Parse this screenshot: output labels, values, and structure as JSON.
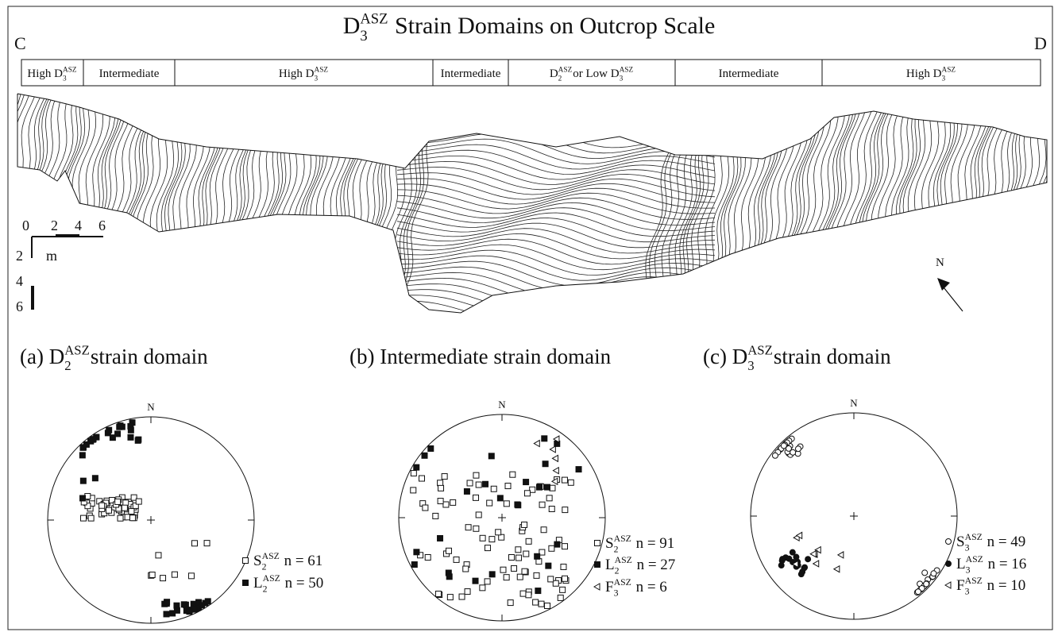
{
  "title": [
    {
      "text": "D"
    },
    {
      "sub": "3",
      "sup": "ASZ"
    },
    {
      "text": " Strain Domains on Outcrop Scale"
    }
  ],
  "ends": {
    "left": "C",
    "right": "D"
  },
  "domains": [
    [
      {
        "text": "High D"
      },
      {
        "sub": "3",
        "sup": "ASZ"
      }
    ],
    [
      {
        "text": "Intermediate"
      }
    ],
    [
      {
        "text": "High D"
      },
      {
        "sub": "3",
        "sup": "ASZ"
      }
    ],
    [
      {
        "text": "Intermediate"
      }
    ],
    [
      {
        "text": "D"
      },
      {
        "sub": "2",
        "sup": "ASZ"
      },
      {
        "text": "or Low D"
      },
      {
        "sub": "3",
        "sup": "ASZ"
      }
    ],
    [
      {
        "text": "Intermediate"
      }
    ],
    [
      {
        "text": "High D"
      },
      {
        "sub": "3",
        "sup": "ASZ"
      }
    ]
  ],
  "scale": {
    "x_labels": [
      0,
      2,
      4,
      6
    ],
    "unit": "m",
    "y_labels": [
      2,
      4,
      6
    ]
  },
  "north": "N",
  "panels": [
    {
      "title": [
        {
          "text": "(a) D"
        },
        {
          "sub": "2",
          "sup": "ASZ"
        },
        {
          "text": "strain domain"
        }
      ],
      "north": "N",
      "legend": [
        {
          "parts": [
            {
              "text": "S"
            },
            {
              "sub": "2",
              "sup": "ASZ"
            },
            {
              "text": " n = 61"
            }
          ]
        },
        {
          "parts": [
            {
              "text": "L"
            },
            {
              "sub": "2",
              "sup": "ASZ"
            },
            {
              "text": " n = 50"
            }
          ]
        }
      ]
    },
    {
      "title": [
        {
          "text": "(b) Intermediate strain domain"
        }
      ],
      "north": "N",
      "legend": [
        {
          "parts": [
            {
              "text": "S"
            },
            {
              "sub": "2",
              "sup": "ASZ"
            },
            {
              "text": " n = 91"
            }
          ]
        },
        {
          "parts": [
            {
              "text": "L"
            },
            {
              "sub": "2",
              "sup": "ASZ"
            },
            {
              "text": " n = 27"
            }
          ]
        },
        {
          "parts": [
            {
              "text": "F"
            },
            {
              "sub": "3",
              "sup": "ASZ"
            },
            {
              "text": " n = 6"
            }
          ]
        }
      ]
    },
    {
      "title": [
        {
          "text": "(c) D"
        },
        {
          "sub": "3",
          "sup": "ASZ"
        },
        {
          "text": "strain domain"
        }
      ],
      "north": "N",
      "legend": [
        {
          "parts": [
            {
              "text": "S"
            },
            {
              "sub": "3",
              "sup": "ASZ"
            },
            {
              "text": " n = 49"
            }
          ]
        },
        {
          "parts": [
            {
              "text": "L"
            },
            {
              "sub": "3",
              "sup": "ASZ"
            },
            {
              "text": " n = 16"
            }
          ]
        },
        {
          "parts": [
            {
              "text": "F"
            },
            {
              "sub": "3",
              "sup": "ASZ"
            },
            {
              "text": " n = 10"
            }
          ]
        }
      ]
    }
  ]
}
